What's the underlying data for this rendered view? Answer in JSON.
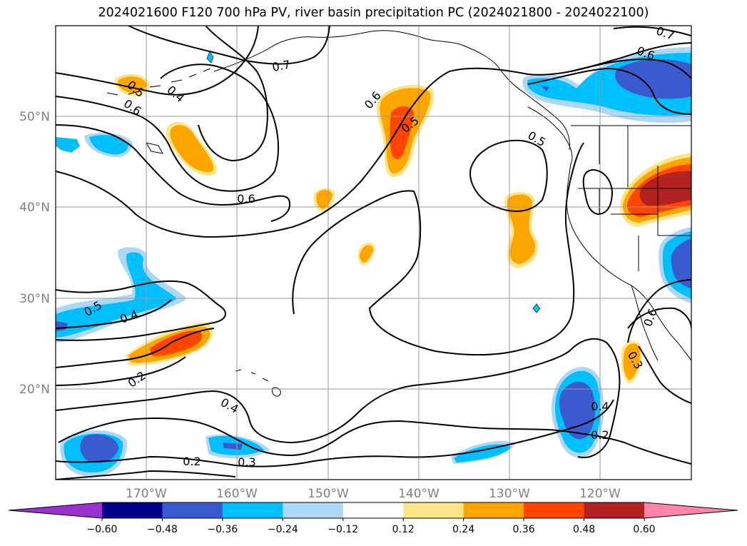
{
  "title": "2024021600 F120 700 hPa PV, river basin precipitation PC (2024021800 - 2024022100)",
  "map": {
    "lat_ticks": [
      "50°N",
      "40°N",
      "30°N",
      "20°N"
    ],
    "lon_ticks": [
      "170°W",
      "160°W",
      "150°W",
      "140°W",
      "130°W",
      "120°W"
    ],
    "contour_labels": [
      "0.7",
      "0.6",
      "0.5",
      "0.4",
      "0.6",
      "0.5",
      "0.6",
      "0.5",
      "0.6",
      "0.7",
      "0.5",
      "0.4",
      "0.2",
      "0.4",
      "0.3",
      "0.2",
      "0.4",
      "0.2",
      "0.3",
      "0.6"
    ]
  },
  "colorbar": {
    "tick_labels": [
      "−0.60",
      "−0.48",
      "−0.36",
      "−0.24",
      "−0.12",
      "0.12",
      "0.24",
      "0.36",
      "0.48",
      "0.60"
    ],
    "colors": [
      "#9932cc",
      "#00008b",
      "#3a5bd0",
      "#00bfff",
      "#add8f5",
      "#ffffff",
      "#fde68a",
      "#ffa500",
      "#ff4500",
      "#b22222",
      "#ff85a8"
    ]
  }
}
